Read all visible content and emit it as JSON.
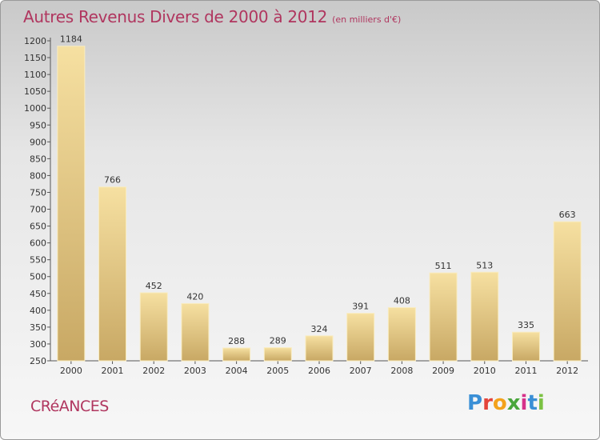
{
  "header": {
    "title": "Autres Revenus Divers de 2000 à 2012",
    "unit": "(en milliers d'€)"
  },
  "footer": {
    "commune": "CRéANCES",
    "brand_letters": [
      "P",
      "r",
      "o",
      "x",
      "i",
      "t",
      "i"
    ],
    "brand_colors": [
      "#3a8fd6",
      "#e4443a",
      "#f3a21b",
      "#4aa63b",
      "#d6318a",
      "#3a8fd6",
      "#7cc243"
    ]
  },
  "colors": {
    "title": "#b0365f",
    "bar_light": "#f6e0a1",
    "bar_dark": "#c8a864",
    "bar_edge": "#f9ecc0"
  },
  "chart_data": {
    "type": "bar",
    "title": "Autres Revenus Divers de 2000 à 2012",
    "subtitle": "(en milliers d'€)",
    "xlabel": "",
    "ylabel": "",
    "categories": [
      "2000",
      "2001",
      "2002",
      "2003",
      "2004",
      "2005",
      "2006",
      "2007",
      "2008",
      "2009",
      "2010",
      "2011",
      "2012"
    ],
    "values": [
      1184,
      766,
      452,
      420,
      288,
      289,
      324,
      391,
      408,
      511,
      513,
      335,
      663
    ],
    "ylim": [
      250,
      1200
    ],
    "yticks": [
      250,
      300,
      350,
      400,
      450,
      500,
      550,
      600,
      650,
      700,
      750,
      800,
      850,
      900,
      950,
      1000,
      1050,
      1100,
      1150,
      1200
    ],
    "grid": false,
    "legend": "none"
  }
}
